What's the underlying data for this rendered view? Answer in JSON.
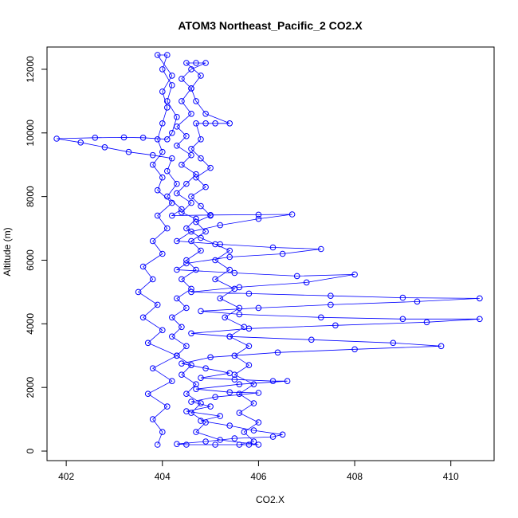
{
  "chart_data": {
    "type": "scatter",
    "title": "ATOM3 Northeast_Pacific_2 CO2.X",
    "xlabel": "CO2.X",
    "ylabel": "Altitude (m)",
    "xlim": [
      401.6,
      410.9
    ],
    "ylim": [
      -300,
      12700
    ],
    "xticks": [
      402,
      404,
      406,
      408,
      410
    ],
    "yticks": [
      0,
      2000,
      4000,
      6000,
      8000,
      10000,
      12000
    ],
    "grid": false,
    "legend": "none",
    "marker": "open-circle",
    "connected": true,
    "color": "#0000ff",
    "series": [
      {
        "points": [
          [
            403.9,
            200
          ],
          [
            404.0,
            600
          ],
          [
            403.8,
            1000
          ],
          [
            404.1,
            1400
          ],
          [
            403.7,
            1800
          ],
          [
            404.2,
            2200
          ],
          [
            403.8,
            2600
          ],
          [
            404.3,
            3000
          ],
          [
            403.7,
            3400
          ],
          [
            404.0,
            3800
          ],
          [
            403.6,
            4200
          ],
          [
            403.9,
            4600
          ],
          [
            403.5,
            5000
          ],
          [
            403.8,
            5400
          ],
          [
            403.6,
            5800
          ],
          [
            404.0,
            6200
          ],
          [
            403.8,
            6600
          ],
          [
            404.1,
            7000
          ],
          [
            403.9,
            7400
          ],
          [
            404.2,
            7800
          ],
          [
            403.9,
            8200
          ],
          [
            404.0,
            8600
          ],
          [
            403.8,
            9000
          ],
          [
            404.0,
            9400
          ],
          [
            403.9,
            9800
          ],
          [
            404.0,
            10300
          ],
          [
            404.1,
            10800
          ],
          [
            404.0,
            11300
          ],
          [
            404.2,
            11800
          ],
          [
            403.9,
            12450
          ],
          [
            404.1,
            12450
          ],
          [
            404.0,
            12000
          ],
          [
            404.2,
            11500
          ],
          [
            404.1,
            11000
          ],
          [
            404.3,
            10500
          ],
          [
            404.2,
            10000
          ],
          [
            404.1,
            9800
          ],
          [
            403.6,
            9850
          ],
          [
            403.2,
            9860
          ],
          [
            402.6,
            9850
          ],
          [
            401.8,
            9820
          ],
          [
            402.3,
            9700
          ],
          [
            402.8,
            9550
          ],
          [
            403.3,
            9400
          ],
          [
            403.8,
            9300
          ],
          [
            404.2,
            9200
          ],
          [
            404.1,
            8800
          ],
          [
            404.3,
            8400
          ],
          [
            404.1,
            8000
          ],
          [
            404.4,
            7600
          ],
          [
            404.2,
            7400
          ],
          [
            405.0,
            7420
          ],
          [
            406.0,
            7430
          ],
          [
            406.7,
            7440
          ],
          [
            406.0,
            7300
          ],
          [
            405.2,
            7100
          ],
          [
            404.6,
            6900
          ],
          [
            404.3,
            6600
          ],
          [
            405.2,
            6500
          ],
          [
            406.3,
            6400
          ],
          [
            407.3,
            6350
          ],
          [
            406.5,
            6200
          ],
          [
            405.4,
            6100
          ],
          [
            404.5,
            5900
          ],
          [
            404.3,
            5700
          ],
          [
            405.5,
            5600
          ],
          [
            406.8,
            5500
          ],
          [
            408.0,
            5550
          ],
          [
            407.0,
            5300
          ],
          [
            405.6,
            5150
          ],
          [
            404.6,
            5000
          ],
          [
            405.8,
            4950
          ],
          [
            407.5,
            4880
          ],
          [
            409.0,
            4820
          ],
          [
            410.6,
            4800
          ],
          [
            409.3,
            4700
          ],
          [
            407.5,
            4600
          ],
          [
            406.0,
            4500
          ],
          [
            404.8,
            4400
          ],
          [
            405.6,
            4300
          ],
          [
            407.3,
            4200
          ],
          [
            409.0,
            4150
          ],
          [
            410.6,
            4150
          ],
          [
            409.5,
            4050
          ],
          [
            407.6,
            3950
          ],
          [
            405.8,
            3850
          ],
          [
            404.6,
            3700
          ],
          [
            405.4,
            3600
          ],
          [
            407.1,
            3500
          ],
          [
            408.8,
            3400
          ],
          [
            409.8,
            3300
          ],
          [
            408.0,
            3200
          ],
          [
            406.4,
            3100
          ],
          [
            405.0,
            2950
          ],
          [
            404.4,
            2750
          ],
          [
            404.9,
            2600
          ],
          [
            405.4,
            2450
          ],
          [
            404.8,
            2300
          ],
          [
            405.5,
            2250
          ],
          [
            406.3,
            2200
          ],
          [
            406.6,
            2200
          ],
          [
            405.6,
            2100
          ],
          [
            404.7,
            1950
          ],
          [
            405.4,
            1850
          ],
          [
            406.0,
            1830
          ],
          [
            405.1,
            1700
          ],
          [
            404.6,
            1550
          ],
          [
            405.0,
            1400
          ],
          [
            404.5,
            1250
          ],
          [
            405.2,
            1100
          ],
          [
            404.8,
            950
          ],
          [
            405.4,
            800
          ],
          [
            405.9,
            650
          ],
          [
            406.5,
            520
          ],
          [
            406.3,
            450
          ],
          [
            405.5,
            400
          ],
          [
            404.9,
            300
          ],
          [
            404.3,
            220
          ],
          [
            404.5,
            200
          ],
          [
            405.1,
            200
          ],
          [
            405.8,
            200
          ],
          [
            406.0,
            200
          ],
          [
            405.2,
            350
          ],
          [
            404.7,
            600
          ],
          [
            404.9,
            900
          ],
          [
            404.6,
            1200
          ],
          [
            404.8,
            1500
          ],
          [
            404.5,
            1800
          ],
          [
            404.7,
            2100
          ],
          [
            404.4,
            2400
          ],
          [
            404.6,
            2700
          ],
          [
            404.3,
            3000
          ],
          [
            404.5,
            3300
          ],
          [
            404.2,
            3600
          ],
          [
            404.4,
            3900
          ],
          [
            404.2,
            4200
          ],
          [
            404.5,
            4500
          ],
          [
            404.3,
            4800
          ],
          [
            404.6,
            5100
          ],
          [
            404.4,
            5400
          ],
          [
            404.7,
            5700
          ],
          [
            404.5,
            6000
          ],
          [
            404.8,
            6300
          ],
          [
            404.6,
            6600
          ],
          [
            404.9,
            6900
          ],
          [
            404.7,
            7200
          ],
          [
            405.0,
            7400
          ],
          [
            404.8,
            7700
          ],
          [
            404.6,
            8000
          ],
          [
            404.9,
            8300
          ],
          [
            404.7,
            8600
          ],
          [
            405.0,
            8900
          ],
          [
            404.8,
            9200
          ],
          [
            404.6,
            9500
          ],
          [
            404.8,
            9800
          ],
          [
            404.7,
            10300
          ],
          [
            404.9,
            10300
          ],
          [
            405.1,
            10300
          ],
          [
            405.4,
            10300
          ],
          [
            404.9,
            10600
          ],
          [
            404.7,
            11000
          ],
          [
            404.6,
            11400
          ],
          [
            404.8,
            11800
          ],
          [
            404.5,
            12200
          ],
          [
            404.7,
            12200
          ],
          [
            404.9,
            12200
          ],
          [
            404.6,
            12000
          ],
          [
            404.4,
            11700
          ],
          [
            404.6,
            11400
          ],
          [
            404.4,
            11000
          ],
          [
            404.6,
            10600
          ],
          [
            404.3,
            10200
          ],
          [
            404.5,
            9900
          ],
          [
            404.3,
            9600
          ],
          [
            404.6,
            9300
          ],
          [
            404.4,
            9000
          ],
          [
            404.7,
            8700
          ],
          [
            404.5,
            8400
          ],
          [
            404.3,
            8100
          ],
          [
            404.6,
            7800
          ],
          [
            404.4,
            7500
          ],
          [
            404.7,
            7300
          ],
          [
            404.5,
            7000
          ],
          [
            404.8,
            6700
          ],
          [
            405.1,
            6500
          ],
          [
            405.4,
            6300
          ],
          [
            405.1,
            6000
          ],
          [
            405.4,
            5700
          ],
          [
            405.1,
            5400
          ],
          [
            405.5,
            5100
          ],
          [
            405.2,
            4800
          ],
          [
            405.6,
            4500
          ],
          [
            405.3,
            4200
          ],
          [
            405.7,
            3900
          ],
          [
            405.4,
            3600
          ],
          [
            405.8,
            3300
          ],
          [
            405.5,
            3000
          ],
          [
            405.8,
            2700
          ],
          [
            405.5,
            2400
          ],
          [
            405.9,
            2100
          ],
          [
            405.6,
            1800
          ],
          [
            405.9,
            1500
          ],
          [
            405.6,
            1200
          ],
          [
            406.0,
            900
          ],
          [
            405.7,
            600
          ],
          [
            405.9,
            300
          ],
          [
            405.6,
            200
          ]
        ]
      }
    ]
  }
}
